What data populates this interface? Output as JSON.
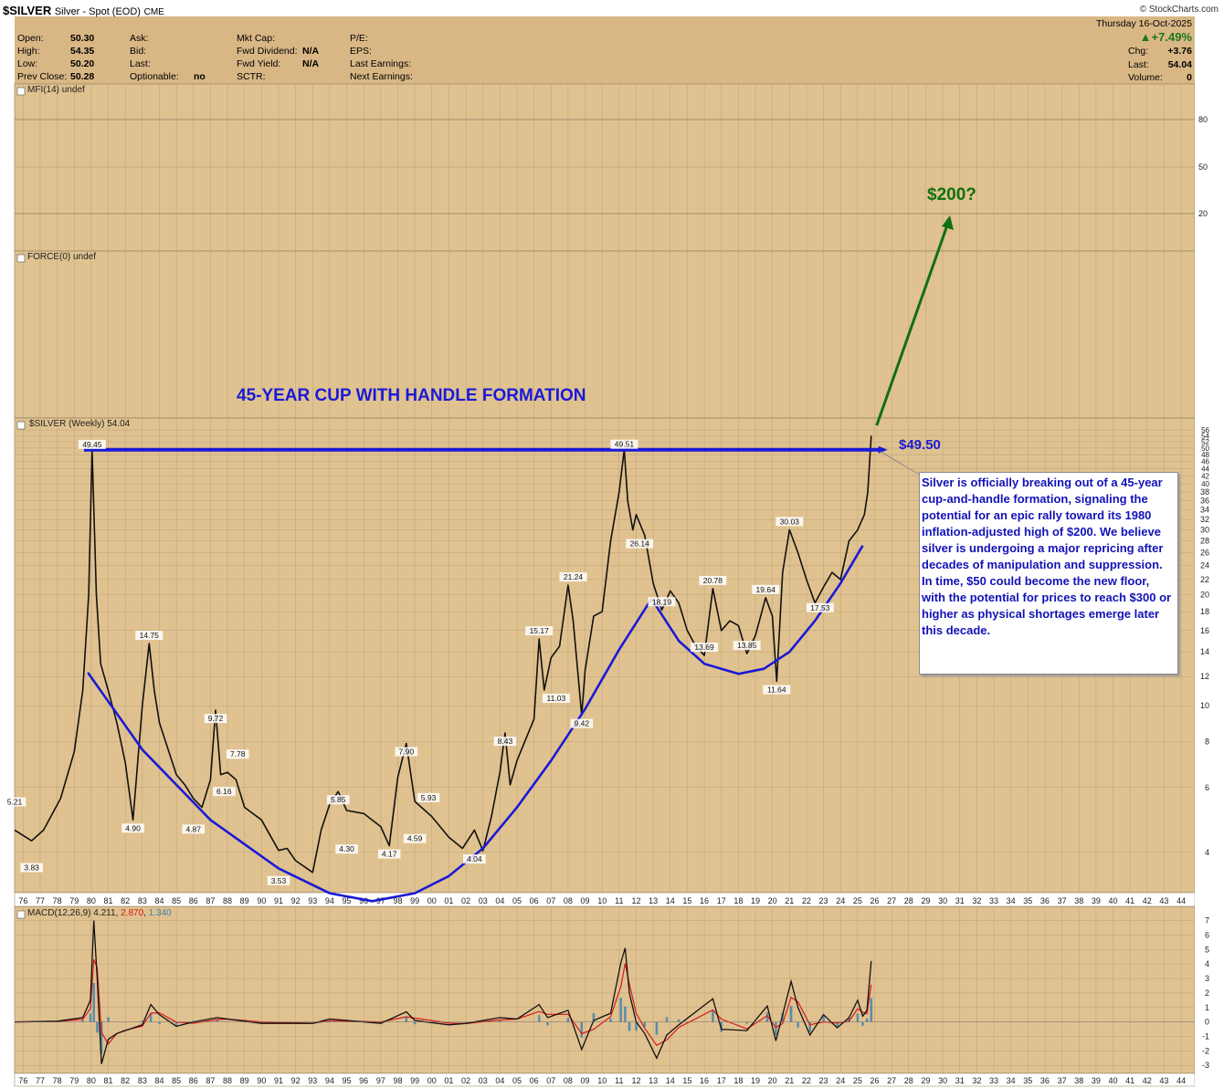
{
  "header": {
    "symbol": "$SILVER",
    "description": "Silver - Spot (EOD)",
    "exchange": "CME",
    "watermark": "© StockCharts.com",
    "date": "Thursday  16-Oct-2025",
    "pct_change": "▲+7.49%",
    "chg_label": "Chg:",
    "chg_value": "+3.76",
    "last_label": "Last:",
    "last_value": "54.04",
    "volume_label": "Volume:",
    "volume_value": "0",
    "open_label": "Open:",
    "open_value": "50.30",
    "high_label": "High:",
    "high_value": "54.35",
    "low_label": "Low:",
    "low_value": "50.20",
    "prev_label": "Prev Close:",
    "prev_value": "50.28",
    "ask_label": "Ask:",
    "bid_label": "Bid:",
    "last2_label": "Last:",
    "optionable_label": "Optionable:",
    "optionable_value": "no",
    "mktcap_label": "Mkt Cap:",
    "fwddiv_label": "Fwd Dividend:",
    "fwddiv_value": "N/A",
    "fwdyield_label": "Fwd Yield:",
    "fwdyield_value": "N/A",
    "sctr_label": "SCTR:",
    "pe_label": "P/E:",
    "eps_label": "EPS:",
    "lastearn_label": "Last Earnings:",
    "nextearn_label": "Next Earnings:"
  },
  "panels": {
    "mfi": "MFI(14) undef",
    "force": "FORCE(0) undef",
    "price": "$SILVER (Weekly) 54.04",
    "macd_label": "MACD(12,26,9)",
    "macd_v1": "4.211",
    "macd_v2": "2.870",
    "macd_v3": "1.340"
  },
  "annotations": {
    "title": "45-YEAR CUP WITH HANDLE FORMATION",
    "target": "$200?",
    "level": "$49.50",
    "note": "Silver is officially breaking out of a 45-year cup-and-handle formation, signaling the potential for an epic rally toward its 1980 inflation-adjusted high of $200. We believe silver is undergoing a major repricing after decades of manipulation and suppression. In time, $50 could become the new floor, with the potential for prices to reach $300 or higher as physical shortages emerge later this decade."
  },
  "colors": {
    "panel_bg": "#e0c290",
    "header_bg": "#d9b785",
    "trend_blue": "#1a1ad6",
    "arrow_green": "#117011",
    "macd_black": "#111111",
    "macd_red": "#d61a1a",
    "macd_hist": "#3a7fb0"
  },
  "chart_data": {
    "type": "line",
    "scale": "log",
    "ylim": [
      3.2,
      57
    ],
    "y_ticks": [
      "4",
      "6",
      "8",
      "10",
      "12",
      "14",
      "16",
      "18",
      "20",
      "22",
      "24",
      "26",
      "28",
      "30",
      "32",
      "34",
      "36",
      "38",
      "40",
      "42",
      "44",
      "46",
      "48",
      "50",
      "52",
      "54",
      "56"
    ],
    "mfi_ticks": [
      "80",
      "50",
      "20"
    ],
    "macd_ticks": [
      "7",
      "6",
      "5",
      "4",
      "3",
      "2",
      "1",
      "0",
      "-1",
      "-2",
      "-3"
    ],
    "macd_ylim": [
      -3.3,
      7.6
    ],
    "x_ticks": [
      "76",
      "77",
      "78",
      "79",
      "80",
      "81",
      "82",
      "83",
      "84",
      "85",
      "86",
      "87",
      "88",
      "89",
      "90",
      "91",
      "92",
      "93",
      "94",
      "95",
      "96",
      "97",
      "98",
      "99",
      "00",
      "01",
      "02",
      "03",
      "04",
      "05",
      "06",
      "07",
      "08",
      "09",
      "10",
      "11",
      "12",
      "13",
      "14",
      "15",
      "16",
      "17",
      "18",
      "19",
      "20",
      "21",
      "22",
      "23",
      "24",
      "25",
      "26",
      "27",
      "28",
      "29",
      "30",
      "31",
      "32",
      "33",
      "34",
      "35",
      "36",
      "37",
      "38",
      "39",
      "40",
      "41",
      "42",
      "43",
      "44"
    ],
    "x_range": [
      1975.5,
      2044.8
    ],
    "series": [
      {
        "x": [
          1975.5,
          1976.5,
          1977.2,
          1978.2,
          1979.0,
          1979.5,
          1979.85,
          1980.05,
          1980.3,
          1980.55,
          1981.0,
          1981.5,
          1982.0,
          1982.45,
          1983.0,
          1983.4,
          1983.7,
          1984.0,
          1985.0,
          1985.5,
          1986.0,
          1986.5,
          1987.0,
          1987.3,
          1987.6,
          1988.0,
          1988.5,
          1989.0,
          1990.0,
          1991.0,
          1991.5,
          1992.0,
          1993.0,
          1993.5,
          1994.0,
          1994.5,
          1995.0,
          1996.0,
          1997.0,
          1997.5,
          1998.0,
          1998.5,
          1999.0,
          2000.0,
          2001.0,
          2001.8,
          2002.5,
          2003.0,
          2003.5,
          2004.0,
          2004.3,
          2004.6,
          2005.0,
          2006.0,
          2006.3,
          2006.6,
          2007.0,
          2007.5,
          2008.0,
          2008.3,
          2008.8,
          2009.0,
          2009.5,
          2010.0,
          2010.5,
          2011.0,
          2011.3,
          2011.5,
          2011.8,
          2012.0,
          2012.5,
          2013.0,
          2013.5,
          2014.0,
          2014.5,
          2015.0,
          2015.5,
          2016.0,
          2016.5,
          2017.0,
          2017.5,
          2018.0,
          2018.5,
          2019.0,
          2019.6,
          2020.0,
          2020.25,
          2020.6,
          2021.0,
          2021.5,
          2022.0,
          2022.5,
          2023.0,
          2023.5,
          2024.0,
          2024.5,
          2025.0,
          2025.4,
          2025.6,
          2025.8
        ],
        "y": [
          4.6,
          4.3,
          4.6,
          5.6,
          7.5,
          11.0,
          20.0,
          49.45,
          20.0,
          13.0,
          11.0,
          9.0,
          7.0,
          4.9,
          10.0,
          14.75,
          11.0,
          9.0,
          6.5,
          6.1,
          5.6,
          5.3,
          6.3,
          9.72,
          6.5,
          6.6,
          6.3,
          5.3,
          4.9,
          4.05,
          4.1,
          3.8,
          3.53,
          4.6,
          5.4,
          5.85,
          5.2,
          5.1,
          4.7,
          4.17,
          6.4,
          7.9,
          5.5,
          5.0,
          4.4,
          4.1,
          4.6,
          4.04,
          5.0,
          6.6,
          8.43,
          6.1,
          7.1,
          9.2,
          15.17,
          11.03,
          13.5,
          14.5,
          21.24,
          17.0,
          9.42,
          12.5,
          17.5,
          18.0,
          28.0,
          38.0,
          49.51,
          36.0,
          30.0,
          33.0,
          29.0,
          21.5,
          18.19,
          20.5,
          19.0,
          16.0,
          14.5,
          13.69,
          20.78,
          16.0,
          17.0,
          16.5,
          13.85,
          15.5,
          19.64,
          17.5,
          11.64,
          23.0,
          30.03,
          26.0,
          22.0,
          19.0,
          21.0,
          23.0,
          22.0,
          28.0,
          30.0,
          33.0,
          38.0,
          54.04
        ]
      }
    ],
    "macd": {
      "x": [
        1975.5,
        1978.0,
        1979.5,
        1979.95,
        1980.15,
        1980.35,
        1980.6,
        1981.0,
        1981.5,
        1982.0,
        1983.0,
        1983.5,
        1984.0,
        1985.0,
        1986.0,
        1987.4,
        1988.0,
        1990.0,
        1993.0,
        1994.0,
        1997.0,
        1998.5,
        1999.0,
        2001.0,
        2002.0,
        2004.0,
        2005.0,
        2006.3,
        2006.8,
        2008.0,
        2008.8,
        2009.5,
        2010.5,
        2011.1,
        2011.35,
        2011.6,
        2012.0,
        2012.5,
        2013.2,
        2013.8,
        2014.5,
        2016.5,
        2017.0,
        2018.5,
        2019.7,
        2020.2,
        2020.6,
        2021.1,
        2021.5,
        2022.2,
        2023.0,
        2023.8,
        2024.5,
        2025.0,
        2025.3,
        2025.55,
        2025.8
      ],
      "y": [
        0,
        0.05,
        0.3,
        1.5,
        7.0,
        3.0,
        -2.9,
        -1.2,
        -0.8,
        -0.6,
        -0.2,
        1.2,
        0.5,
        -0.3,
        0,
        0.3,
        0.2,
        -0.1,
        -0.1,
        0.2,
        -0.1,
        0.7,
        0.1,
        -0.2,
        -0.1,
        0.3,
        0.2,
        1.2,
        0.3,
        0.8,
        -1.9,
        0.1,
        0.6,
        4.1,
        5.1,
        2.0,
        0,
        -0.8,
        -2.5,
        -0.9,
        -0.2,
        1.6,
        -0.5,
        -0.6,
        1.1,
        -1.3,
        0.5,
        2.8,
        1.0,
        -0.9,
        0.5,
        -0.4,
        0.3,
        1.5,
        0.4,
        0.8,
        4.211
      ],
      "signal_value": 2.87,
      "hist_value": 1.34
    },
    "trendlines": {
      "resistance": 49.5,
      "cup_points": [
        [
          1979.8,
          12.3
        ],
        [
          1983.0,
          7.6
        ],
        [
          1987.0,
          4.9
        ],
        [
          1991.0,
          3.62
        ],
        [
          1994.0,
          3.1
        ],
        [
          1996.5,
          2.95
        ],
        [
          1999.0,
          3.1
        ],
        [
          2001.0,
          3.45
        ],
        [
          2003.0,
          4.1
        ],
        [
          2005.0,
          5.3
        ],
        [
          2007.0,
          7.1
        ],
        [
          2009.0,
          9.8
        ],
        [
          2011.0,
          14.2
        ],
        [
          2012.9,
          19.5
        ]
      ],
      "handle_points": [
        [
          2012.9,
          19.5
        ],
        [
          2014.5,
          15.0
        ],
        [
          2016.0,
          13.0
        ],
        [
          2018.0,
          12.2
        ],
        [
          2019.5,
          12.6
        ],
        [
          2021.0,
          14.0
        ],
        [
          2022.5,
          17.0
        ],
        [
          2024.0,
          21.5
        ],
        [
          2025.3,
          27.2
        ]
      ]
    },
    "data_labels": [
      {
        "x": 1975.5,
        "y": 5.21,
        "text": "5.21"
      },
      {
        "x": 1976.5,
        "y": 3.83,
        "text": "3.83"
      },
      {
        "x": 1980.05,
        "y": 49.45,
        "text": "49.45"
      },
      {
        "x": 1982.45,
        "y": 4.9,
        "text": "4.90"
      },
      {
        "x": 1983.4,
        "y": 14.75,
        "text": "14.75"
      },
      {
        "x": 1986.0,
        "y": 4.87,
        "text": "4.87"
      },
      {
        "x": 1987.3,
        "y": 9.72,
        "text": "9.72"
      },
      {
        "x": 1987.8,
        "y": 6.16,
        "text": "6.16"
      },
      {
        "x": 1988.6,
        "y": 7.78,
        "text": "7.78"
      },
      {
        "x": 1991.0,
        "y": 3.53,
        "text": "3.53"
      },
      {
        "x": 1994.5,
        "y": 5.85,
        "text": "5.85"
      },
      {
        "x": 1995.0,
        "y": 4.3,
        "text": "4.30"
      },
      {
        "x": 1997.5,
        "y": 4.17,
        "text": "4.17"
      },
      {
        "x": 1998.5,
        "y": 7.9,
        "text": "7.90"
      },
      {
        "x": 1999.0,
        "y": 4.59,
        "text": "4.59"
      },
      {
        "x": 1999.8,
        "y": 5.93,
        "text": "5.93"
      },
      {
        "x": 2002.5,
        "y": 4.04,
        "text": "4.04"
      },
      {
        "x": 2004.3,
        "y": 8.43,
        "text": "8.43"
      },
      {
        "x": 2006.3,
        "y": 15.17,
        "text": "15.17"
      },
      {
        "x": 2007.3,
        "y": 11.03,
        "text": "11.03"
      },
      {
        "x": 2008.3,
        "y": 21.24,
        "text": "21.24"
      },
      {
        "x": 2008.8,
        "y": 9.42,
        "text": "9.42"
      },
      {
        "x": 2011.3,
        "y": 49.51,
        "text": "49.51"
      },
      {
        "x": 2012.2,
        "y": 26.14,
        "text": "26.14"
      },
      {
        "x": 2013.5,
        "y": 18.19,
        "text": "18.19"
      },
      {
        "x": 2016.0,
        "y": 13.69,
        "text": "13.69"
      },
      {
        "x": 2016.5,
        "y": 20.78,
        "text": "20.78"
      },
      {
        "x": 2018.5,
        "y": 13.85,
        "text": "13.85"
      },
      {
        "x": 2019.6,
        "y": 19.64,
        "text": "19.64"
      },
      {
        "x": 2020.25,
        "y": 11.64,
        "text": "11.64"
      },
      {
        "x": 2021.0,
        "y": 30.03,
        "text": "30.03"
      },
      {
        "x": 2022.8,
        "y": 17.53,
        "text": "17.53"
      }
    ]
  }
}
